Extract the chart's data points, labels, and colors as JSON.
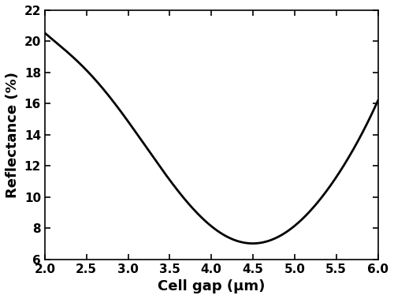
{
  "xlabel": "Cell gap (μm)",
  "ylabel": "Reflectance (%)",
  "xlim": [
    2.0,
    6.0
  ],
  "ylim": [
    6,
    22
  ],
  "xticks": [
    2.0,
    2.5,
    3.0,
    3.5,
    4.0,
    4.5,
    5.0,
    5.5,
    6.0
  ],
  "yticks": [
    6,
    8,
    10,
    12,
    14,
    16,
    18,
    20,
    22
  ],
  "line_color": "#000000",
  "line_width": 2.0,
  "bg_color": "#ffffff",
  "fig_bg_color": "#ffffff",
  "x_pts": [
    2.0,
    2.3,
    2.6,
    2.9,
    3.2,
    3.5,
    3.75,
    3.95,
    4.1,
    4.25,
    4.4,
    4.6,
    4.8,
    5.0,
    5.2,
    5.5,
    5.75,
    6.0
  ],
  "y_pts": [
    20.5,
    19.3,
    17.5,
    15.5,
    13.3,
    11.2,
    9.6,
    8.4,
    7.6,
    7.1,
    7.0,
    7.15,
    7.5,
    8.2,
    9.2,
    11.2,
    13.5,
    16.2
  ]
}
